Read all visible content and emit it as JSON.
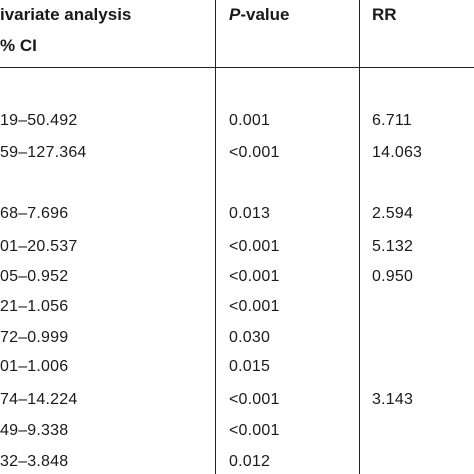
{
  "headers": {
    "col1_line1": "ivariate analysis",
    "col1_line2": "% CI",
    "pvalue_letter": "P",
    "pvalue_rest": "-value",
    "rr": "RR"
  },
  "rows": [
    {
      "ci": "19–50.492",
      "p": "0.001",
      "rr": "6.711"
    },
    {
      "ci": "59–127.364",
      "p": "<0.001",
      "rr": "14.063"
    },
    {
      "ci": "",
      "p": "",
      "rr": ""
    },
    {
      "ci": "68–7.696",
      "p": "0.013",
      "rr": "2.594"
    },
    {
      "ci": "01–20.537",
      "p": "<0.001",
      "rr": "5.132"
    },
    {
      "ci": "05–0.952",
      "p": "<0.001",
      "rr": "0.950"
    },
    {
      "ci": "21–1.056",
      "p": "<0.001",
      "rr": ""
    },
    {
      "ci": "72–0.999",
      "p": "0.030",
      "rr": ""
    },
    {
      "ci": "01–1.006",
      "p": "0.015",
      "rr": ""
    },
    {
      "ci": "74–14.224",
      "p": "<0.001",
      "rr": "3.143"
    },
    {
      "ci": "49–9.338",
      "p": "<0.001",
      "rr": ""
    },
    {
      "ci": "32–3.848",
      "p": "0.012",
      "rr": ""
    }
  ]
}
